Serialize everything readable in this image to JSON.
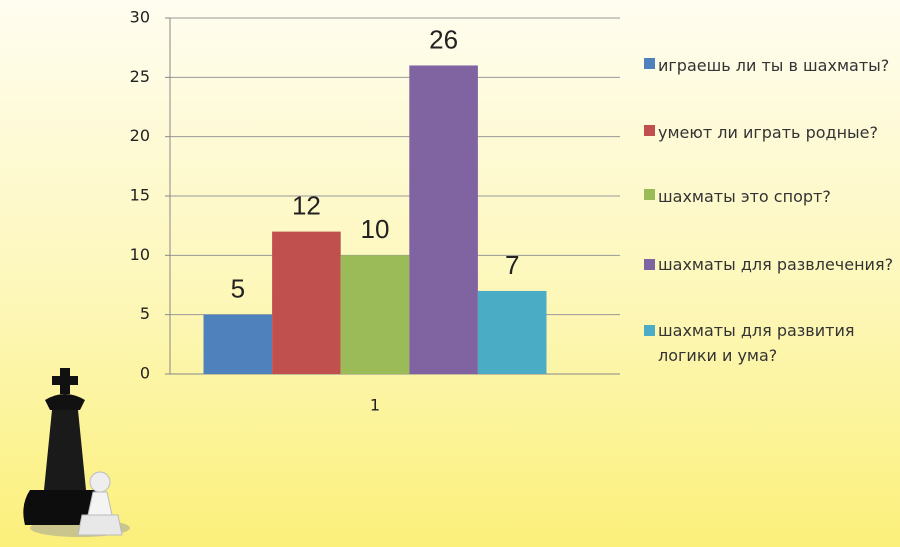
{
  "chart_data": {
    "type": "bar",
    "categories": [
      "1"
    ],
    "series": [
      {
        "name": "играешь ли ты в шахматы?",
        "color": "#4f81bd",
        "values": [
          5
        ]
      },
      {
        "name": "умеют ли играть родные?",
        "color": "#c0504d",
        "values": [
          12
        ]
      },
      {
        "name": "шахматы это спорт?",
        "color": "#9bbb59",
        "values": [
          10
        ]
      },
      {
        "name": "шахматы для развлечения?",
        "color": "#8064a2",
        "values": [
          26
        ]
      },
      {
        "name": "шахматы для развития логики и ума?",
        "color": "#4bacc6",
        "values": [
          7
        ]
      }
    ],
    "ylim": [
      0,
      30
    ],
    "yticks": [
      0,
      5,
      10,
      15,
      20,
      25,
      30
    ],
    "grid": true,
    "legend": "right"
  }
}
